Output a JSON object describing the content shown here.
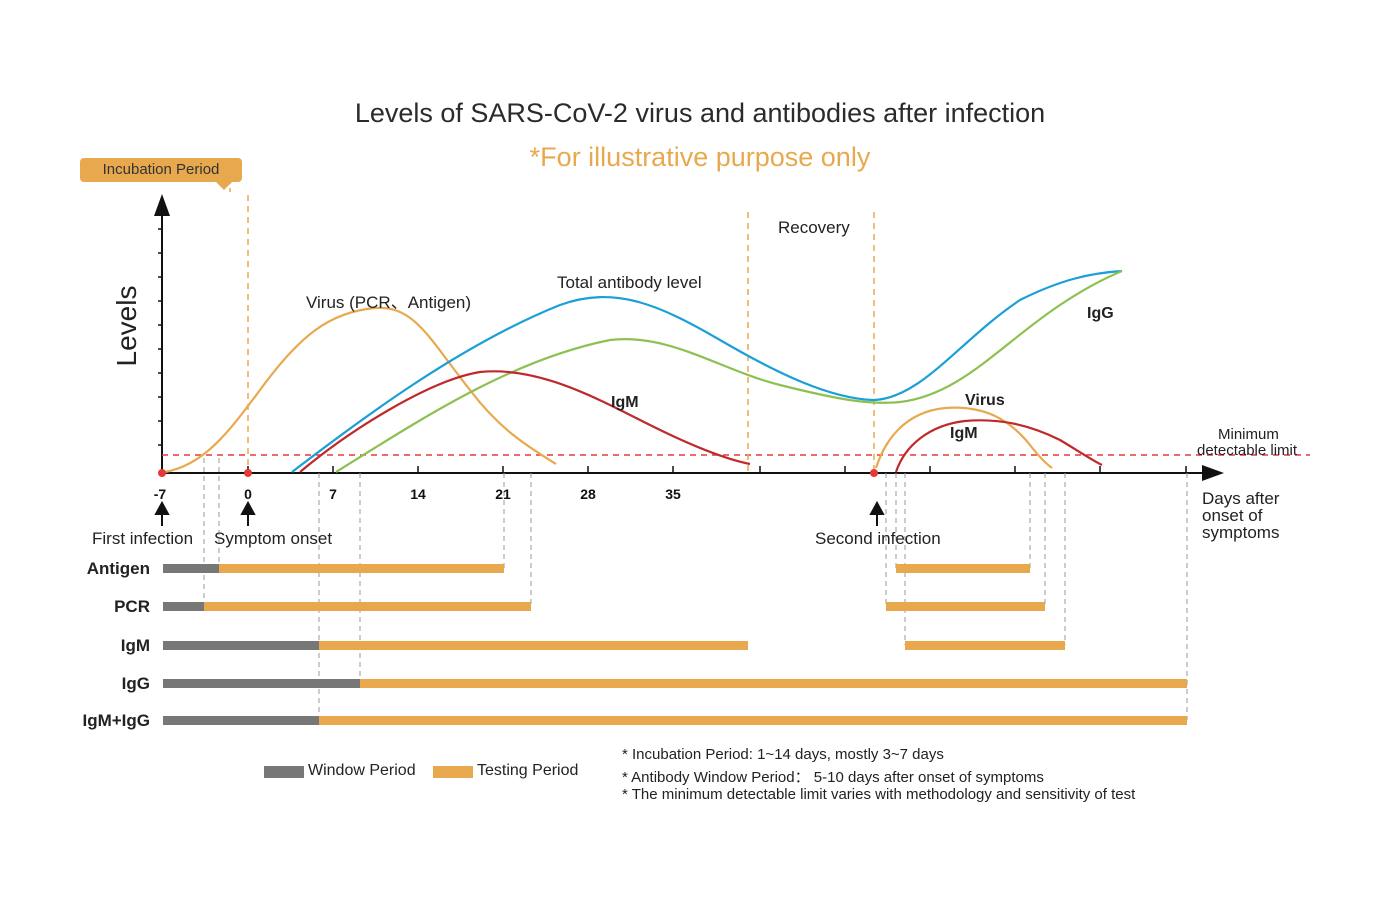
{
  "title": "Levels of SARS-CoV-2 virus and antibodies after infection",
  "subtitle": "*For illustrative purpose only",
  "incubation_label": "Incubation Period",
  "recovery_label": "Recovery",
  "y_axis_label": "Levels",
  "x_axis_label_lines": [
    "Days after",
    "onset of",
    "symptoms"
  ],
  "min_limit_lines": [
    "Minimum",
    "detectable limit"
  ],
  "tick_labels": [
    "-7",
    "0",
    "7",
    "14",
    "21",
    "28",
    "35"
  ],
  "event_labels": {
    "first_infection": "First infection",
    "symptom_onset": "Symptom onset",
    "second_infection": "Second infection"
  },
  "curve_labels": {
    "virus": "Virus (PCR、Antigen)",
    "total": "Total antibody level",
    "igm": "IgM",
    "igg": "IgG",
    "virus2": "Virus",
    "igm2": "IgM"
  },
  "rows": [
    {
      "label": "Antigen"
    },
    {
      "label": "PCR"
    },
    {
      "label": "IgM"
    },
    {
      "label": "IgG"
    },
    {
      "label": "IgM+IgG"
    }
  ],
  "legend": {
    "window": "Window Period",
    "testing": "Testing Period"
  },
  "notes": [
    "* Incubation Period: 1~14 days, mostly 3~7 days",
    "* Antibody Window Period：  5-10 days after onset of symptoms",
    "* The minimum detectable limit varies with methodology and sensitivity of test"
  ],
  "colors": {
    "virus": "#e8a94e",
    "total": "#1a9fd8",
    "igg": "#8cc152",
    "igm": "#c0292b",
    "window": "#777777",
    "testing": "#e8a94e",
    "limit": "#e53935"
  }
}
